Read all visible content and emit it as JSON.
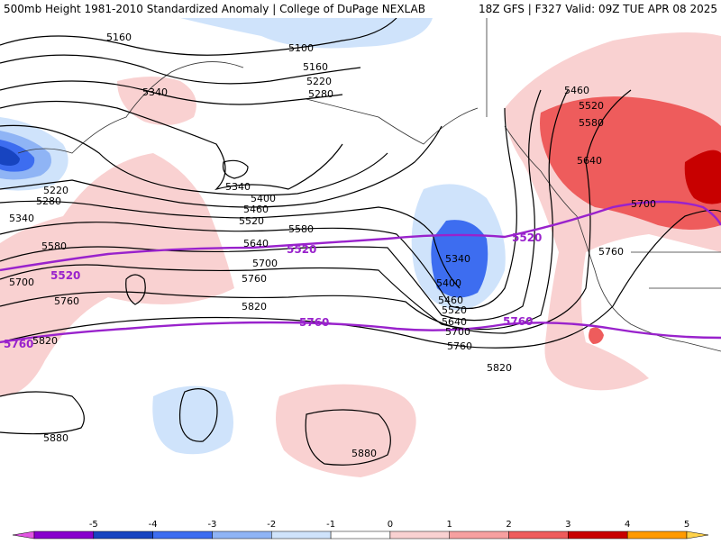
{
  "header": {
    "left_title": "500mb Height 1981-2010 Standardized Anomaly | College of DuPage NEXLAB",
    "right_title": "18Z GFS | F327 Valid: 09Z TUE APR 08 2025"
  },
  "contours": {
    "black_labels": [
      "5160",
      "5100",
      "5160",
      "5220",
      "5280",
      "5340",
      "5220",
      "5280",
      "5340",
      "5340",
      "5400",
      "5460",
      "5520",
      "5580",
      "5640",
      "5700",
      "5760",
      "5820",
      "5340",
      "5400",
      "5460",
      "5520",
      "5640",
      "5700",
      "5760",
      "5820",
      "5460",
      "5520",
      "5580",
      "5640",
      "5700",
      "5760",
      "5580",
      "5700",
      "5760",
      "5820",
      "5880",
      "5880"
    ],
    "purple_labels": [
      "5520",
      "5520",
      "5520",
      "5760",
      "5760",
      "5760"
    ]
  },
  "colorbar": {
    "ticks": [
      "-5",
      "-4",
      "-3",
      "-2",
      "-1",
      "0",
      "1",
      "2",
      "3",
      "4",
      "5"
    ],
    "colors": [
      "#e255e2",
      "#8800cc",
      "#1744c0",
      "#3d6df0",
      "#8fb4f5",
      "#cfe3fb",
      "#ffffff",
      "#f9d1d1",
      "#f6a0a0",
      "#ee5c5c",
      "#c80000",
      "#ff9a00",
      "#ffd24a"
    ]
  }
}
